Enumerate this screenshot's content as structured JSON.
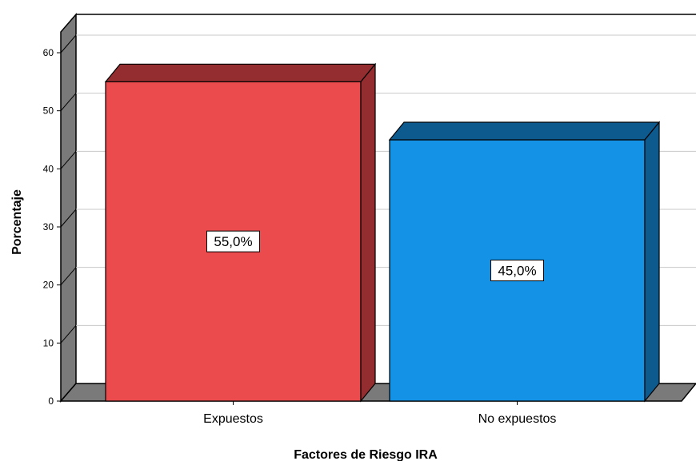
{
  "chart_data": {
    "type": "bar",
    "categories": [
      "Expuestos",
      "No expuestos"
    ],
    "values": [
      55.0,
      45.0
    ],
    "data_labels": [
      "55,0%",
      "45,0%"
    ],
    "colors": [
      "#ec4b4e",
      "#1492e6"
    ],
    "side_colors": [
      "#932d2f",
      "#0d5a8f"
    ],
    "xlabel": "Factores de Riesgo IRA",
    "ylabel": "Porcentaje",
    "ylim": [
      0,
      60
    ],
    "yticks": [
      "0",
      "10",
      "20",
      "30",
      "40",
      "50",
      "60"
    ],
    "grid": true,
    "style": "3d"
  }
}
